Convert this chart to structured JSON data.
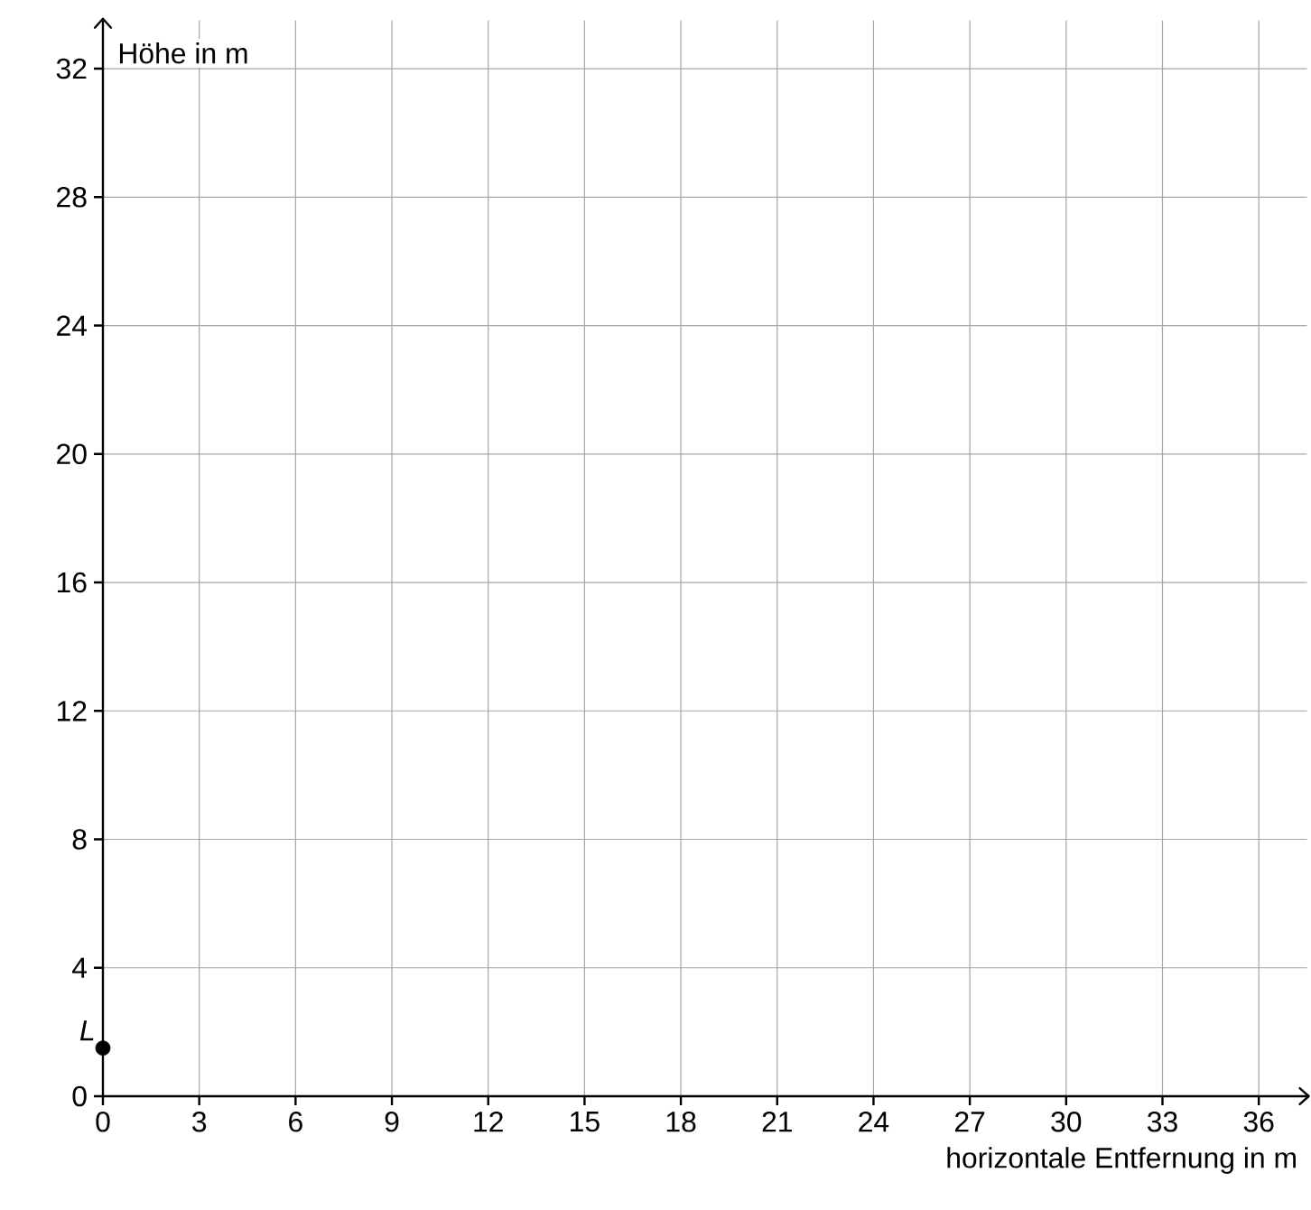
{
  "chart_data": {
    "type": "scatter",
    "xlabel": "horizontale Entfernung in m",
    "ylabel": "Höhe in m",
    "x": [
      0
    ],
    "values": [
      1.5
    ],
    "color": "#000000",
    "xlim": [
      0,
      37.5
    ],
    "ylim": [
      0,
      33.5
    ],
    "xticks": [
      0,
      3,
      6,
      9,
      12,
      15,
      18,
      21,
      24,
      27,
      30,
      33,
      36
    ],
    "yticks": [
      0,
      4,
      8,
      12,
      16,
      20,
      24,
      28,
      32
    ],
    "grid": true,
    "annotations": [
      {
        "text": "L",
        "x": 0,
        "y": 1.5
      }
    ]
  }
}
